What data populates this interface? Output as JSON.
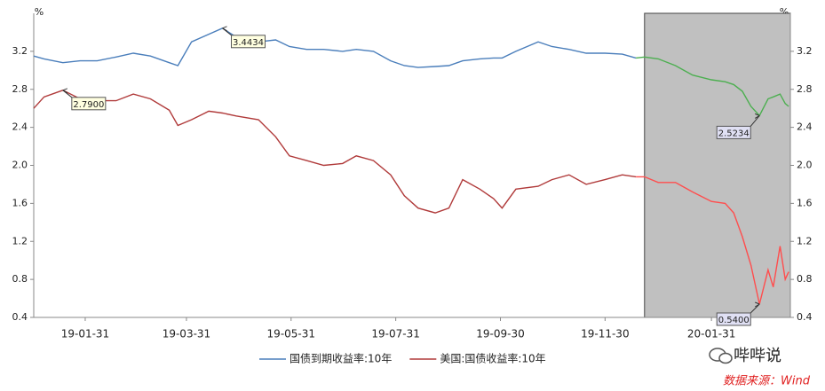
{
  "chart_data": {
    "type": "line",
    "x": [
      "19-01-01",
      "19-01-07",
      "19-01-18",
      "19-01-28",
      "19-02-07",
      "19-02-18",
      "19-02-28",
      "19-03-10",
      "19-03-21",
      "19-03-26",
      "19-04-03",
      "19-04-13",
      "19-04-21",
      "19-04-29",
      "19-05-12",
      "19-05-22",
      "19-05-30",
      "19-06-09",
      "19-06-19",
      "19-06-30",
      "19-07-08",
      "19-07-18",
      "19-07-28",
      "19-08-05",
      "19-08-13",
      "19-08-23",
      "19-08-31",
      "19-09-08",
      "19-09-18",
      "19-09-26",
      "19-10-01",
      "19-10-09",
      "19-10-22",
      "19-10-30",
      "19-11-09",
      "19-11-19",
      "19-11-30",
      "19-12-10",
      "19-12-18",
      "19-12-23",
      "19-12-31",
      "20-01-10",
      "20-01-20",
      "20-01-31",
      "20-02-08",
      "20-02-13",
      "20-02-18",
      "20-02-23",
      "20-02-28",
      "20-03-04",
      "20-03-07",
      "20-03-11",
      "20-03-14",
      "20-03-16"
    ],
    "series": [
      {
        "name": "国债到期收益率:10年",
        "color": "#4a7ebb",
        "highlight_color": "#4caf50",
        "values": [
          3.15,
          3.12,
          3.08,
          3.1,
          3.1,
          3.14,
          3.18,
          3.15,
          3.08,
          3.05,
          3.3,
          3.38,
          3.4434,
          3.35,
          3.3,
          3.32,
          3.25,
          3.22,
          3.22,
          3.2,
          3.22,
          3.2,
          3.1,
          3.05,
          3.03,
          3.04,
          3.05,
          3.1,
          3.12,
          3.13,
          3.13,
          3.2,
          3.3,
          3.25,
          3.22,
          3.18,
          3.18,
          3.17,
          3.13,
          3.14,
          3.12,
          3.05,
          2.95,
          2.9,
          2.88,
          2.85,
          2.78,
          2.62,
          2.5234,
          2.7,
          2.72,
          2.75,
          2.65,
          2.62
        ]
      },
      {
        "name": "美国:国债收益率:10年",
        "color": "#b03a3a",
        "highlight_color": "#ff4d4d",
        "values": [
          2.6,
          2.72,
          2.79,
          2.7,
          2.68,
          2.68,
          2.75,
          2.7,
          2.58,
          2.42,
          2.48,
          2.57,
          2.55,
          2.52,
          2.48,
          2.3,
          2.1,
          2.05,
          2.0,
          2.02,
          2.1,
          2.05,
          1.9,
          1.68,
          1.55,
          1.5,
          1.55,
          1.85,
          1.75,
          1.65,
          1.55,
          1.75,
          1.78,
          1.85,
          1.9,
          1.8,
          1.85,
          1.9,
          1.88,
          1.88,
          1.82,
          1.82,
          1.72,
          1.62,
          1.6,
          1.5,
          1.25,
          0.95,
          0.54,
          0.9,
          0.72,
          1.15,
          0.8,
          0.88
        ]
      }
    ],
    "xlim": [
      "19-01-01",
      "20-03-17"
    ],
    "xticks": [
      "19-01-31",
      "19-03-31",
      "19-05-31",
      "19-07-31",
      "19-09-30",
      "19-11-30",
      "20-01-31"
    ],
    "ylim": [
      0.4,
      3.6
    ],
    "yticks": [
      0.4,
      0.8,
      1.2,
      1.6,
      {
        "value": 2,
        "label": "2.0"
      },
      2.4,
      2.8,
      3.2
    ],
    "y2lim": [
      0.4,
      3.6
    ],
    "y2ticks": [
      0.4,
      0.8,
      1.2,
      1.6,
      {
        "value": 2,
        "label": "2.0"
      },
      2.4,
      2.8,
      3.2
    ],
    "y_unit": "%",
    "y2_unit": "%",
    "shaded_from": "19-12-23",
    "shade_color": "#c0c0c0",
    "annotations": [
      {
        "x": "19-04-21",
        "value": 3.4434,
        "label": "3.4434",
        "color": "#ffffe0"
      },
      {
        "x": "19-01-18",
        "value": 2.79,
        "label": "2.7900",
        "color": "#ffffe0"
      },
      {
        "x": "20-02-28",
        "value": 2.5234,
        "label": "2.5234",
        "color": "#e0e0f4"
      },
      {
        "x": "20-02-28",
        "value": 0.54,
        "label": "0.5400",
        "color": "#e0e0f4"
      }
    ],
    "legend": "bottom",
    "watermark": "哔哔说",
    "source": "数据来源：Wind"
  }
}
